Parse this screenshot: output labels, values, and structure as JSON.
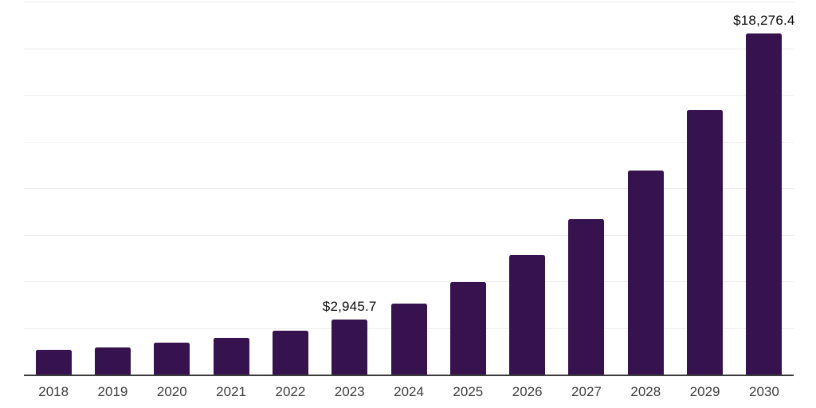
{
  "chart_data": {
    "type": "bar",
    "title": "",
    "xlabel": "",
    "ylabel": "",
    "categories": [
      "2018",
      "2019",
      "2020",
      "2021",
      "2022",
      "2023",
      "2024",
      "2025",
      "2026",
      "2027",
      "2028",
      "2029",
      "2030"
    ],
    "values": [
      1315,
      1460,
      1700,
      1975,
      2370,
      2945.7,
      3795,
      4965,
      6400,
      8355,
      10950,
      14170,
      18276.4
    ],
    "value_labels": [
      {
        "category": "2023",
        "index": 5,
        "text": "$2,945.7"
      },
      {
        "category": "2030",
        "index": 12,
        "text": "$18,276.4"
      }
    ],
    "ylim": [
      0,
      20000
    ],
    "gridline_step": 2500,
    "grid": true,
    "legend": "none",
    "colors": {
      "bar": "#36124E",
      "gridline": "#EDEDED",
      "axis": "#3C3C3C",
      "tick_label": "#3D3D3D",
      "value_label": "#0A0A0A",
      "background": "#FFFFFF"
    }
  }
}
